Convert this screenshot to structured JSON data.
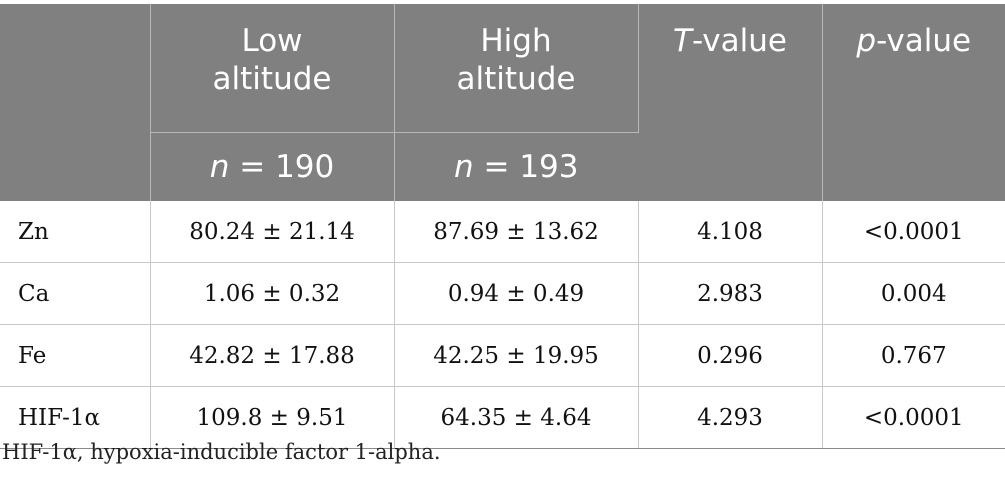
{
  "header": {
    "low_line1": "Low",
    "low_line2": "altitude",
    "high_line1": "High",
    "high_line2": "altitude",
    "t_var": "T",
    "t_suffix": "-value",
    "p_var": "p",
    "p_suffix": "-value",
    "n_var": "n",
    "low_n": " = 190",
    "high_n": " = 193"
  },
  "rows": [
    {
      "label": "Zn",
      "low": "80.24 ± 21.14",
      "high": "87.69 ± 13.62",
      "t": "4.108",
      "p": "<0.0001"
    },
    {
      "label": "Ca",
      "low": "1.06 ± 0.32",
      "high": "0.94 ± 0.49",
      "t": "2.983",
      "p": "0.004"
    },
    {
      "label": "Fe",
      "low": "42.82 ± 17.88",
      "high": "42.25 ± 19.95",
      "t": "0.296",
      "p": "0.767"
    },
    {
      "label": "HIF-1α",
      "low": "109.8 ± 9.51",
      "high": "64.35 ± 4.64",
      "t": "4.293",
      "p": "<0.0001"
    }
  ],
  "footnote": "HIF-1α, hypoxia-inducible factor 1-alpha."
}
